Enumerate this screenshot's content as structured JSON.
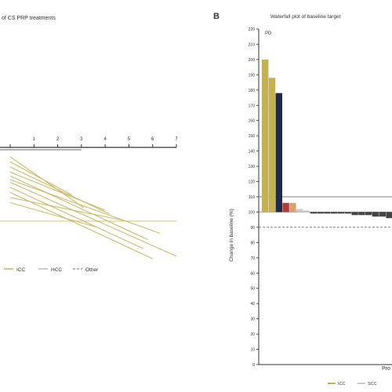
{
  "chart_data": [
    {
      "type": "line",
      "title": "of CS PRP treatments",
      "xlim": [
        0,
        7
      ],
      "x_ticks": [
        "0",
        "1",
        "2",
        "3",
        "4",
        "5",
        "6",
        "7"
      ],
      "x_tick_labels_visible": [
        "1",
        "2",
        "3",
        "4",
        "5",
        "6",
        "7"
      ],
      "series_color": "#c8b55a",
      "series": [
        {
          "x": [
            0,
            3.1
          ],
          "y": [
            100,
            60
          ]
        },
        {
          "x": [
            0,
            2.6
          ],
          "y": [
            96,
            70
          ]
        },
        {
          "x": [
            0,
            4.2
          ],
          "y": [
            92,
            55
          ]
        },
        {
          "x": [
            0,
            4.0
          ],
          "y": [
            88,
            58
          ]
        },
        {
          "x": [
            0,
            5.8
          ],
          "y": [
            85,
            35
          ]
        },
        {
          "x": [
            0,
            6.3
          ],
          "y": [
            82,
            40
          ]
        },
        {
          "x": [
            0,
            7.0
          ],
          "y": [
            80,
            22
          ]
        },
        {
          "x": [
            0,
            5.6
          ],
          "y": [
            76,
            28
          ]
        },
        {
          "x": [
            0,
            6.0
          ],
          "y": [
            72,
            20
          ]
        },
        {
          "x": [
            0,
            4.8
          ],
          "y": [
            68,
            50
          ]
        },
        {
          "x": [
            0,
            3.6
          ],
          "y": [
            64,
            45
          ]
        }
      ],
      "legend": [
        {
          "label": "ICC",
          "style": "solid",
          "color": "#c8b55a"
        },
        {
          "label": "HCC",
          "style": "solid",
          "color": "#bdbdbd"
        },
        {
          "label": "Other",
          "style": "dashed",
          "color": "#9e9e9e"
        }
      ]
    },
    {
      "type": "bar",
      "panel_label": "B",
      "title": "Waterfall plot of baseline target",
      "ylabel": "Change in baseline (%)",
      "xlabel": "Pro",
      "ylim": [
        0,
        220
      ],
      "y_ticks": [
        0,
        10,
        20,
        30,
        40,
        50,
        60,
        70,
        80,
        90,
        100,
        110,
        120,
        130,
        140,
        150,
        160,
        170,
        180,
        190,
        200,
        210,
        220
      ],
      "reference_lines": [
        {
          "value": 110,
          "style": "solid",
          "color": "#555555"
        },
        {
          "value": 100,
          "style": "solid",
          "color": "#999999"
        },
        {
          "value": 90,
          "style": "dashed",
          "color": "#555555"
        }
      ],
      "annotations": [
        {
          "text": "PD",
          "near_value": 200
        }
      ],
      "baseline": 100,
      "values": [
        200,
        188,
        178,
        106,
        106,
        102,
        101,
        99,
        99,
        99,
        99,
        99,
        99,
        98,
        98,
        98,
        97,
        97,
        96,
        88
      ],
      "bar_colors": [
        "#c6b055",
        "#c6b055",
        "#1e2a4a",
        "#b63a3a",
        "#d9a26a",
        "#c9c9c9",
        "#c9c9c9",
        "#444444",
        "#444444",
        "#444444",
        "#444444",
        "#444444",
        "#444444",
        "#444444",
        "#444444",
        "#444444",
        "#444444",
        "#444444",
        "#444444",
        "#1e2a4a"
      ],
      "legend": [
        {
          "label": "ICC",
          "color": "#c6b055"
        },
        {
          "label": "SCC",
          "color": "#c9c9c9"
        }
      ]
    }
  ]
}
